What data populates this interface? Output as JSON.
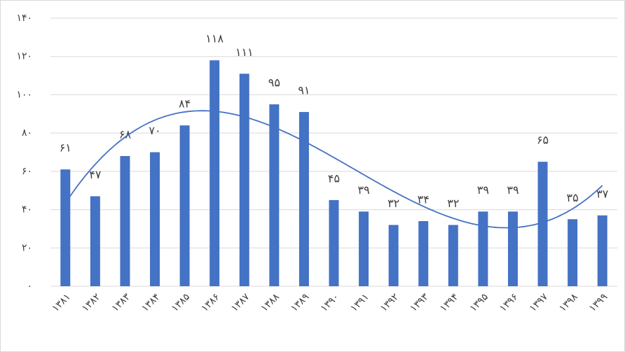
{
  "chart_data": {
    "type": "bar",
    "categories": [
      "۱۳۸۱",
      "۱۳۸۲",
      "۱۳۸۳",
      "۱۳۸۴",
      "۱۳۸۵",
      "۱۳۸۶",
      "۱۳۸۷",
      "۱۳۸۸",
      "۱۳۸۹",
      "۱۳۹۰",
      "۱۳۹۱",
      "۱۳۹۲",
      "۱۳۹۳",
      "۱۳۹۴",
      "۱۳۹۵",
      "۱۳۹۶",
      "۱۳۹۷",
      "۱۳۹۸",
      "۱۳۹۹"
    ],
    "values": [
      61,
      47,
      68,
      70,
      84,
      118,
      111,
      95,
      91,
      45,
      39,
      32,
      34,
      32,
      39,
      39,
      65,
      35,
      37
    ],
    "value_labels": [
      "۶۱",
      "۴۷",
      "۶۸",
      "۷۰",
      "۸۴",
      "۱۱۸",
      "۱۱۱",
      "۹۵",
      "۹۱",
      "۴۵",
      "۳۹",
      "۳۲",
      "۳۴",
      "۳۲",
      "۳۹",
      "۳۹",
      "۶۵",
      "۳۵",
      "۳۷"
    ],
    "color": "#4472c4",
    "ylim": [
      0,
      140
    ],
    "yticks": [
      {
        "value": 0,
        "label": "۰"
      },
      {
        "value": 20,
        "label": "۲۰"
      },
      {
        "value": 40,
        "label": "۴۰"
      },
      {
        "value": 60,
        "label": "۶۰"
      },
      {
        "value": 80,
        "label": "۸۰"
      },
      {
        "value": 100,
        "label": "۱۰۰"
      },
      {
        "value": 120,
        "label": "۱۲۰"
      },
      {
        "value": 140,
        "label": "۱۴۰"
      }
    ],
    "grid": true,
    "trendline": "polynomial"
  }
}
